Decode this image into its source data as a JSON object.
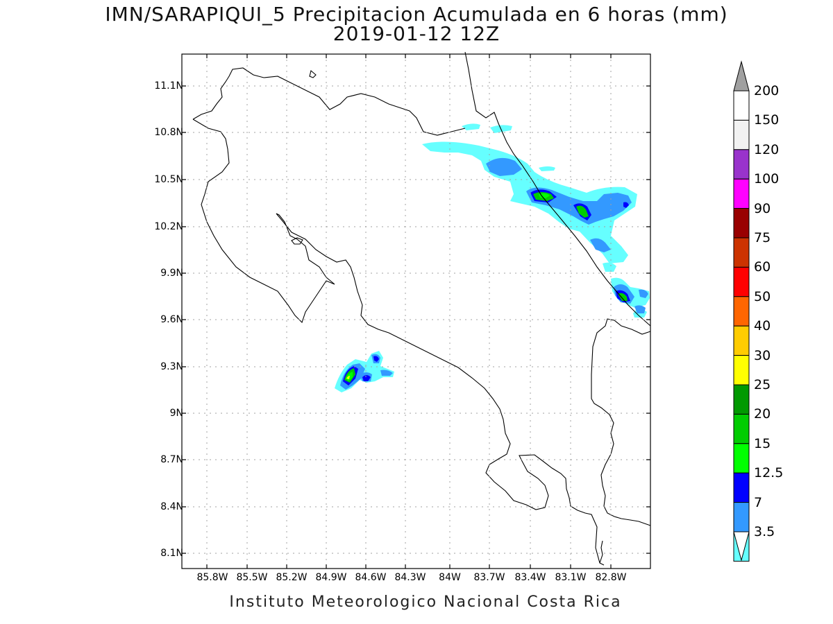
{
  "title": {
    "line1": "IMN/SARAPIQUI_5 Precipitacion Acumulada en 6 horas (mm)",
    "line2": "2019-01-12 12Z"
  },
  "footer": "Instituto Meteorologico Nacional Costa Rica",
  "axes": {
    "lat_ticks": [
      "11.1N",
      "10.8N",
      "10.5N",
      "10.2N",
      "9.9N",
      "9.6N",
      "9.3N",
      "9N",
      "8.7N",
      "8.4N",
      "8.1N"
    ],
    "lon_ticks": [
      "85.8W",
      "85.5W",
      "85.2W",
      "84.9W",
      "84.6W",
      "84.3W",
      "84W",
      "83.7W",
      "83.4W",
      "83.1W",
      "82.8W"
    ]
  },
  "colorbar": {
    "labels": [
      "200",
      "150",
      "120",
      "100",
      "90",
      "75",
      "60",
      "50",
      "40",
      "30",
      "25",
      "20",
      "15",
      "12.5",
      "7",
      "3.5"
    ],
    "colors": [
      "#ffffff",
      "#f2f2f2",
      "#9933cc",
      "#ff00ff",
      "#990000",
      "#cc3300",
      "#ff0000",
      "#ff6600",
      "#ffcc00",
      "#ffff00",
      "#009900",
      "#00cc00",
      "#00ff00",
      "#0000ff",
      "#3399ff",
      "#66ffff"
    ],
    "over_color": "#a0a0a0",
    "under_color": "#ffffff"
  },
  "precip_colors": {
    "light": "#66ffff",
    "moderate": "#3399ff",
    "heavy": "#0000ff",
    "very_heavy": "#00cc00",
    "extreme": "#00ff00",
    "peak": "#ffff00"
  }
}
